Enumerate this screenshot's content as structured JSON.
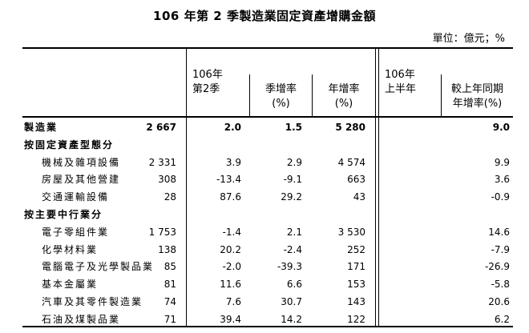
{
  "title": "106 年第 2 季製造業固定資產增購金額",
  "unit": "單位：億元；%",
  "headers": {
    "q2_line1": "106年",
    "q2_line2": "第2季",
    "qoq_line1": "季增率",
    "qoq_line2": "(%)",
    "yoy_line1": "年增率",
    "yoy_line2": "(%)",
    "h1_line1": "106年",
    "h1_line2": "上半年",
    "h1yoy_line1": "較上年同期",
    "h1yoy_line2": "年增率(%)"
  },
  "rows": [
    {
      "label": "製造業",
      "q2": "2 667",
      "qoq": "2.0",
      "yoy": "1.5",
      "h1": "5 280",
      "h1yoy": "9.0",
      "bold": true,
      "indent": 0
    },
    {
      "label": "按固定資產型態分",
      "q2": "",
      "qoq": "",
      "yoy": "",
      "h1": "",
      "h1yoy": "",
      "bold": true,
      "indent": 0
    },
    {
      "label": "機械及雜項設備",
      "q2": "2 331",
      "qoq": "3.9",
      "yoy": "2.9",
      "h1": "4 574",
      "h1yoy": "9.9",
      "bold": false,
      "indent": 1
    },
    {
      "label": "房屋及其他營建",
      "q2": "308",
      "qoq": "-13.4",
      "yoy": "-9.1",
      "h1": "663",
      "h1yoy": "3.6",
      "bold": false,
      "indent": 1
    },
    {
      "label": "交通運輸設備",
      "q2": "28",
      "qoq": "87.6",
      "yoy": "29.2",
      "h1": "43",
      "h1yoy": "-0.9",
      "bold": false,
      "indent": 1
    },
    {
      "label": "按主要中行業分",
      "q2": "",
      "qoq": "",
      "yoy": "",
      "h1": "",
      "h1yoy": "",
      "bold": true,
      "indent": 0
    },
    {
      "label": "電子零組件業",
      "q2": "1 753",
      "qoq": "-1.4",
      "yoy": "2.1",
      "h1": "3 530",
      "h1yoy": "14.6",
      "bold": false,
      "indent": 1
    },
    {
      "label": "化學材料業",
      "q2": "138",
      "qoq": "20.2",
      "yoy": "-2.4",
      "h1": "252",
      "h1yoy": "-7.9",
      "bold": false,
      "indent": 1
    },
    {
      "label": "電腦電子及光學製品業",
      "q2": "85",
      "qoq": "-2.0",
      "yoy": "-39.3",
      "h1": "171",
      "h1yoy": "-26.9",
      "bold": false,
      "indent": 1
    },
    {
      "label": "基本金屬業",
      "q2": "81",
      "qoq": "11.6",
      "yoy": "6.6",
      "h1": "153",
      "h1yoy": "-5.8",
      "bold": false,
      "indent": 1
    },
    {
      "label": "汽車及其零件製造業",
      "q2": "74",
      "qoq": "7.6",
      "yoy": "30.7",
      "h1": "143",
      "h1yoy": "20.6",
      "bold": false,
      "indent": 1
    },
    {
      "label": "石油及煤製品業",
      "q2": "71",
      "qoq": "39.4",
      "yoy": "14.2",
      "h1": "122",
      "h1yoy": "6.2",
      "bold": false,
      "indent": 1
    }
  ]
}
